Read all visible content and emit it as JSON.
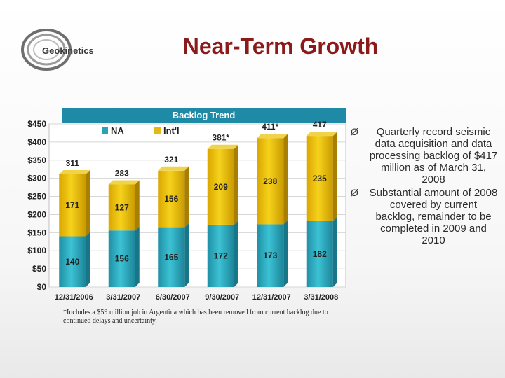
{
  "header": {
    "logo_text": "Geokinetics",
    "title": "Near-Term Growth"
  },
  "chart_data": {
    "type": "bar",
    "stacked": true,
    "title": "Backlog Trend",
    "categories": [
      "12/31/2006",
      "3/31/2007",
      "6/30/2007",
      "9/30/2007",
      "12/31/2007",
      "3/31/2008"
    ],
    "series": [
      {
        "name": "NA",
        "color": "#2aa3b8",
        "values": [
          140,
          156,
          165,
          172,
          173,
          182
        ]
      },
      {
        "name": "Int'l",
        "color": "#e7b80f",
        "values": [
          171,
          127,
          156,
          209,
          238,
          235
        ]
      }
    ],
    "totals": [
      "311",
      "283",
      "321",
      "381*",
      "411*",
      "417"
    ],
    "y_ticks": [
      "$0",
      "$50",
      "$100",
      "$150",
      "$200",
      "$250",
      "$300",
      "$350",
      "$400",
      "$450"
    ],
    "ylim": [
      0,
      450
    ],
    "xlabel": "",
    "ylabel": "",
    "legend_position": "top"
  },
  "footnote": "*Includes a $59 million job in Argentina which has been removed from current backlog due to continued delays and uncertainty.",
  "bullets": [
    {
      "marker": "Ø",
      "text": "Quarterly record seismic data acquisition and data processing backlog of $417 million as of March 31, 2008"
    },
    {
      "marker": "Ø",
      "text": "Substantial amount of 2008 covered by current backlog, remainder to be completed in 2009 and 2010"
    }
  ]
}
